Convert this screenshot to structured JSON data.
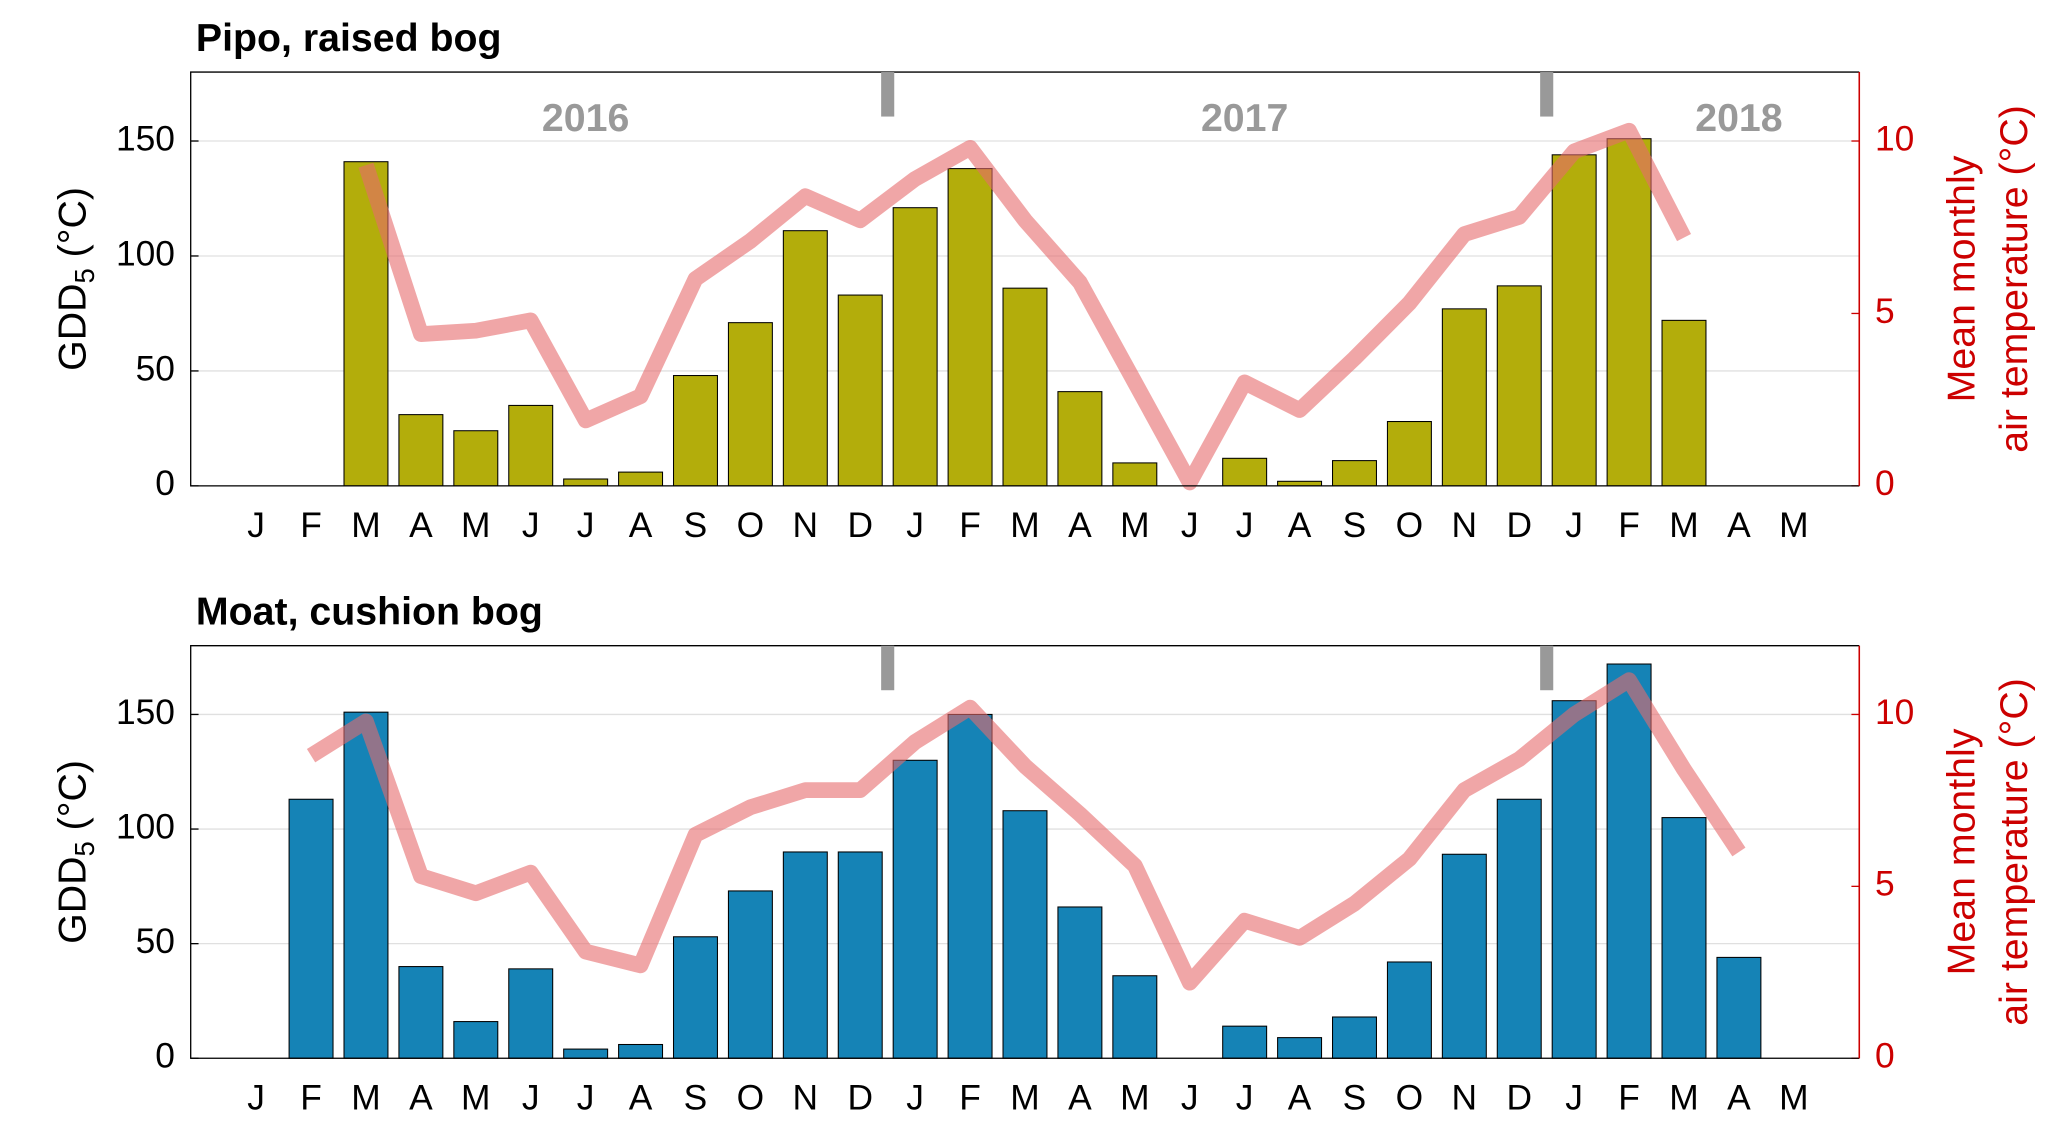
{
  "chart_data": [
    {
      "type": "bar",
      "title": "Pipo, raised bog",
      "ylabel": "GDD",
      "ylabel_sub": "5",
      "ylabel_unit": "(°C)",
      "y2label": [
        "Mean monthly",
        "air temperature (°C)"
      ],
      "categories": [
        "J",
        "F",
        "M",
        "A",
        "M",
        "J",
        "J",
        "A",
        "S",
        "O",
        "N",
        "D",
        "J",
        "F",
        "M",
        "A",
        "M",
        "J",
        "J",
        "A",
        "S",
        "O",
        "N",
        "D",
        "J",
        "F",
        "M",
        "A",
        "M"
      ],
      "series": [
        {
          "color": "#b3ad0b",
          "values": [
            0,
            0,
            141,
            31,
            24,
            35,
            3,
            6,
            48,
            71,
            111,
            83,
            121,
            138,
            86,
            41,
            10,
            0,
            12,
            2,
            11,
            28,
            77,
            87,
            144,
            151,
            72,
            0,
            0
          ]
        },
        {
          "type": "line",
          "axis": "y2",
          "color": "#e66a6c",
          "values": [
            null,
            null,
            9.3,
            4.4,
            4.5,
            4.8,
            1.9,
            2.6,
            6.0,
            7.1,
            8.4,
            7.7,
            8.9,
            9.8,
            7.7,
            5.9,
            3.0,
            0.1,
            3.0,
            2.2,
            3.7,
            5.3,
            7.3,
            7.8,
            9.7,
            10.3,
            7.2,
            null,
            null
          ]
        }
      ],
      "annotations": [
        "2016",
        "2017",
        "2018"
      ],
      "ylim": [
        0,
        180
      ],
      "yticks": [
        0,
        50,
        100,
        150
      ],
      "y2lim": [
        0,
        12
      ],
      "y2ticks": [
        0,
        5,
        10
      ],
      "y2color": "#cc0000",
      "grid": true
    },
    {
      "type": "bar",
      "title": "Moat, cushion bog",
      "ylabel": "GDD",
      "ylabel_sub": "5",
      "ylabel_unit": "(°C)",
      "y2label": [
        "Mean monthly",
        "air temperature (°C)"
      ],
      "categories": [
        "J",
        "F",
        "M",
        "A",
        "M",
        "J",
        "J",
        "A",
        "S",
        "O",
        "N",
        "D",
        "J",
        "F",
        "M",
        "A",
        "M",
        "J",
        "J",
        "A",
        "S",
        "O",
        "N",
        "D",
        "J",
        "F",
        "M",
        "A",
        "M"
      ],
      "series": [
        {
          "color": "#1583b6",
          "values": [
            null,
            113,
            151,
            40,
            16,
            39,
            4,
            6,
            53,
            73,
            90,
            90,
            130,
            150,
            108,
            66,
            36,
            null,
            14,
            9,
            18,
            42,
            89,
            113,
            156,
            172,
            105,
            44,
            null
          ]
        },
        {
          "type": "line",
          "axis": "y2",
          "color": "#e66a6c",
          "values": [
            null,
            8.8,
            9.8,
            5.3,
            4.8,
            5.4,
            3.1,
            2.7,
            6.5,
            7.3,
            7.8,
            7.8,
            9.2,
            10.2,
            8.5,
            7.1,
            5.6,
            2.2,
            4.0,
            3.5,
            4.5,
            5.8,
            7.8,
            8.7,
            10.0,
            11.0,
            8.4,
            6.0,
            null
          ]
        }
      ],
      "ylim": [
        0,
        180
      ],
      "yticks": [
        0,
        50,
        100,
        150
      ],
      "y2lim": [
        0,
        12
      ],
      "y2ticks": [
        0,
        5,
        10
      ],
      "y2color": "#cc0000",
      "grid": true
    }
  ]
}
